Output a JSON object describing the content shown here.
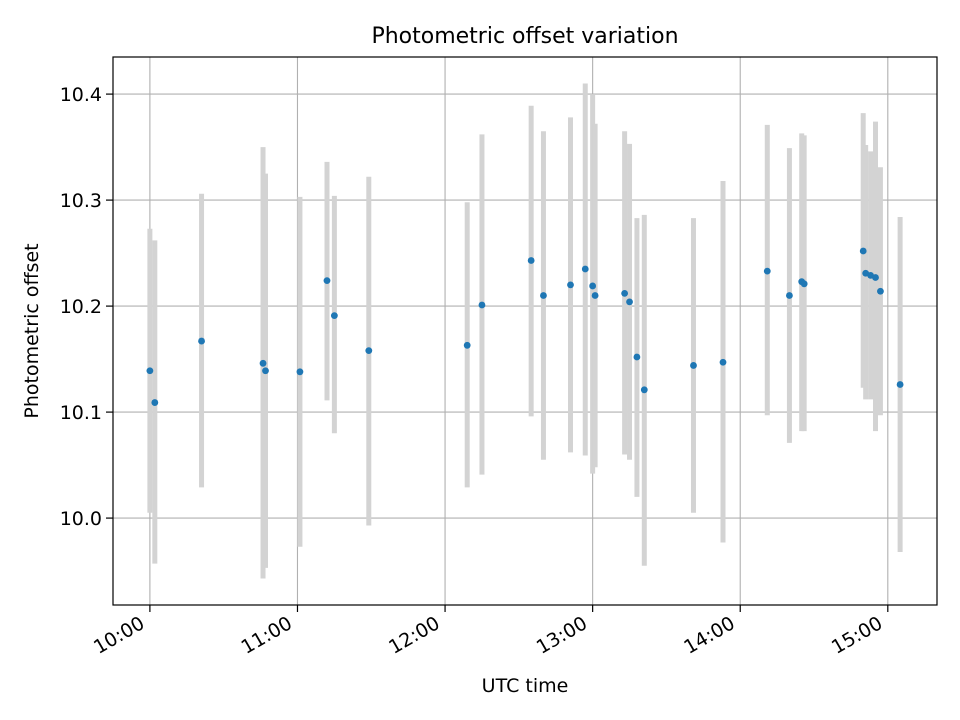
{
  "chart_data": {
    "type": "scatter",
    "title": "Photometric offset variation",
    "xlabel": "UTC time",
    "ylabel": "Photometric offset",
    "x_is_time": true,
    "xlim": [
      "09:45",
      "15:20"
    ],
    "ylim": [
      9.918,
      10.435
    ],
    "x_ticks": [
      "10:00",
      "11:00",
      "12:00",
      "13:00",
      "14:00",
      "15:00"
    ],
    "y_ticks": [
      10.0,
      10.1,
      10.2,
      10.3,
      10.4
    ],
    "y_tick_labels": [
      "10.0",
      "10.1",
      "10.2",
      "10.3",
      "10.4"
    ],
    "grid": true,
    "colors": {
      "points": "#1f77b4",
      "errorbars": "#d3d3d3",
      "grid": "#b0b0b0"
    },
    "points": [
      {
        "x": "10:00",
        "y": 10.139,
        "ylow": 10.005,
        "yhigh": 10.273
      },
      {
        "x": "10:02",
        "y": 10.109,
        "ylow": 9.957,
        "yhigh": 10.262
      },
      {
        "x": "10:21",
        "y": 10.167,
        "ylow": 10.029,
        "yhigh": 10.306
      },
      {
        "x": "10:46",
        "y": 10.146,
        "ylow": 9.943,
        "yhigh": 10.35
      },
      {
        "x": "10:47",
        "y": 10.139,
        "ylow": 9.953,
        "yhigh": 10.325
      },
      {
        "x": "11:01",
        "y": 10.138,
        "ylow": 9.973,
        "yhigh": 10.303
      },
      {
        "x": "11:12",
        "y": 10.224,
        "ylow": 10.111,
        "yhigh": 10.336
      },
      {
        "x": "11:15",
        "y": 10.191,
        "ylow": 10.08,
        "yhigh": 10.304
      },
      {
        "x": "11:29",
        "y": 10.158,
        "ylow": 9.993,
        "yhigh": 10.322
      },
      {
        "x": "12:09",
        "y": 10.163,
        "ylow": 10.029,
        "yhigh": 10.298
      },
      {
        "x": "12:15",
        "y": 10.201,
        "ylow": 10.041,
        "yhigh": 10.362
      },
      {
        "x": "12:35",
        "y": 10.243,
        "ylow": 10.096,
        "yhigh": 10.389
      },
      {
        "x": "12:40",
        "y": 10.21,
        "ylow": 10.055,
        "yhigh": 10.365
      },
      {
        "x": "12:51",
        "y": 10.22,
        "ylow": 10.062,
        "yhigh": 10.378
      },
      {
        "x": "12:57",
        "y": 10.235,
        "ylow": 10.059,
        "yhigh": 10.41
      },
      {
        "x": "13:00",
        "y": 10.219,
        "ylow": 10.042,
        "yhigh": 10.4
      },
      {
        "x": "13:01",
        "y": 10.21,
        "ylow": 10.048,
        "yhigh": 10.372
      },
      {
        "x": "13:13",
        "y": 10.212,
        "ylow": 10.06,
        "yhigh": 10.365
      },
      {
        "x": "13:15",
        "y": 10.204,
        "ylow": 10.055,
        "yhigh": 10.353
      },
      {
        "x": "13:18",
        "y": 10.152,
        "ylow": 10.02,
        "yhigh": 10.283
      },
      {
        "x": "13:21",
        "y": 10.121,
        "ylow": 9.955,
        "yhigh": 10.286
      },
      {
        "x": "13:41",
        "y": 10.144,
        "ylow": 10.005,
        "yhigh": 10.283
      },
      {
        "x": "13:53",
        "y": 10.147,
        "ylow": 9.977,
        "yhigh": 10.318
      },
      {
        "x": "14:11",
        "y": 10.233,
        "ylow": 10.097,
        "yhigh": 10.371
      },
      {
        "x": "14:20",
        "y": 10.21,
        "ylow": 10.071,
        "yhigh": 10.349
      },
      {
        "x": "14:25",
        "y": 10.223,
        "ylow": 10.082,
        "yhigh": 10.363
      },
      {
        "x": "14:26",
        "y": 10.221,
        "ylow": 10.082,
        "yhigh": 10.361
      },
      {
        "x": "14:50",
        "y": 10.252,
        "ylow": 10.123,
        "yhigh": 10.382
      },
      {
        "x": "14:51",
        "y": 10.231,
        "ylow": 10.112,
        "yhigh": 10.352
      },
      {
        "x": "14:53",
        "y": 10.229,
        "ylow": 10.112,
        "yhigh": 10.346
      },
      {
        "x": "14:55",
        "y": 10.227,
        "ylow": 10.082,
        "yhigh": 10.374
      },
      {
        "x": "14:57",
        "y": 10.214,
        "ylow": 10.097,
        "yhigh": 10.331
      },
      {
        "x": "15:05",
        "y": 10.126,
        "ylow": 9.968,
        "yhigh": 10.284
      }
    ]
  }
}
